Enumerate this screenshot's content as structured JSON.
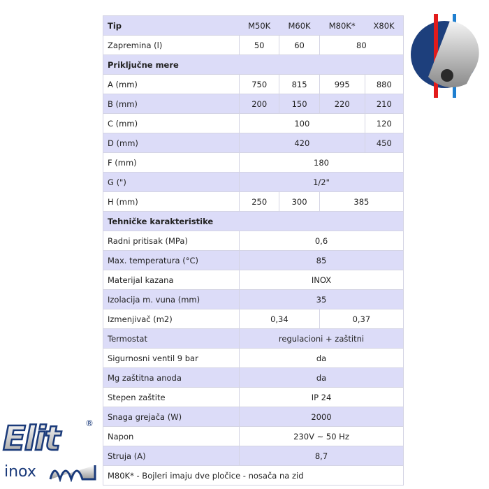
{
  "header": {
    "label": "Tip",
    "models": [
      "M50K",
      "M60K",
      "M80K*",
      "X80K"
    ]
  },
  "zapremina": {
    "label": "Zapremina (l)",
    "values": [
      "50",
      "60",
      "80"
    ]
  },
  "section1": "Priključne mere",
  "A": {
    "label": "A (mm)",
    "values": [
      "750",
      "815",
      "995",
      "880"
    ]
  },
  "B": {
    "label": "B (mm)",
    "values": [
      "200",
      "150",
      "220",
      "210"
    ]
  },
  "C": {
    "label": "C (mm)",
    "values": [
      "100",
      "120"
    ]
  },
  "D": {
    "label": "D (mm)",
    "values": [
      "420",
      "450"
    ]
  },
  "F": {
    "label": "F (mm)",
    "value": "180"
  },
  "G": {
    "label": "G (\")",
    "value": "1/2\""
  },
  "H": {
    "label": "H (mm)",
    "values": [
      "250",
      "300",
      "385"
    ]
  },
  "section2": "Tehničke karakteristike",
  "rows": [
    {
      "label": "Radni pritisak (MPa)",
      "value": "0,6"
    },
    {
      "label": "Max. temperatura (°C)",
      "value": "85"
    },
    {
      "label": "Materijal kazana",
      "value": "INOX"
    },
    {
      "label": "Izolacija m. vuna (mm)",
      "value": "35"
    }
  ],
  "izmenjivac": {
    "label": "Izmenjivač (m2)",
    "values": [
      "0,34",
      "0,37"
    ]
  },
  "rows2": [
    {
      "label": "Termostat",
      "value": "regulacioni + zaštitni"
    },
    {
      "label": "Sigurnosni ventil 9 bar",
      "value": "da"
    },
    {
      "label": "Mg zaštitna anoda",
      "value": "da"
    },
    {
      "label": "Stepen zaštite",
      "value": "IP 24"
    },
    {
      "label": "Snaga grejača (W)",
      "value": "2000"
    },
    {
      "label": "Napon",
      "value": "230V ~ 50 Hz"
    },
    {
      "label": "Struja (A)",
      "value": "8,7"
    }
  ],
  "footnote": "M80K* - Bojleri imaju dve pločice - nosača na zid",
  "logo": {
    "text": "Elit inox",
    "mark": "®"
  },
  "colors": {
    "row_alt": "#dcdcf8",
    "logo_blue": "#1a3a7a"
  }
}
